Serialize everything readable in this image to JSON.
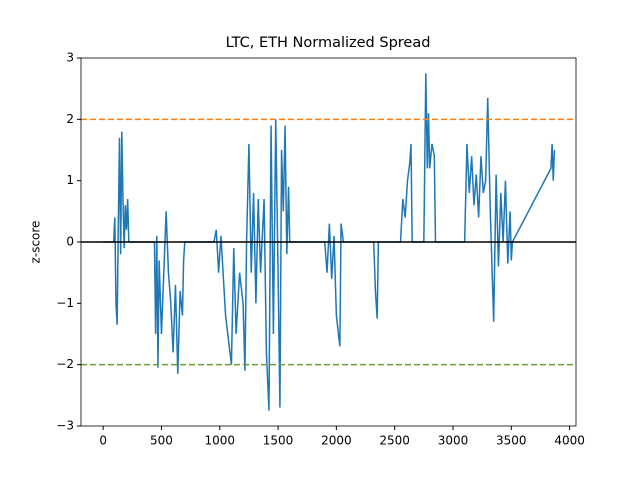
{
  "chart_data": {
    "type": "line",
    "title": "LTC, ETH Normalized Spread",
    "ylabel": "z-score",
    "x": [
      0,
      90,
      100,
      110,
      120,
      130,
      140,
      150,
      160,
      170,
      180,
      190,
      200,
      210,
      220,
      230,
      440,
      450,
      460,
      470,
      480,
      500,
      540,
      560,
      580,
      600,
      620,
      640,
      660,
      680,
      690,
      700,
      950,
      970,
      990,
      1010,
      1050,
      1100,
      1120,
      1140,
      1170,
      1200,
      1216,
      1230,
      1250,
      1270,
      1290,
      1310,
      1330,
      1350,
      1380,
      1400,
      1422,
      1440,
      1460,
      1480,
      1500,
      1516,
      1530,
      1545,
      1560,
      1575,
      1590,
      1600,
      1900,
      1920,
      1940,
      1960,
      1980,
      2000,
      2030,
      2040,
      2060,
      2320,
      2335,
      2350,
      2360,
      2550,
      2570,
      2590,
      2610,
      2630,
      2640,
      2650,
      2750,
      2767,
      2780,
      2790,
      2800,
      2820,
      2840,
      2850,
      3100,
      3120,
      3140,
      3160,
      3180,
      3200,
      3220,
      3240,
      3260,
      3280,
      3298,
      3320,
      3349,
      3370,
      3390,
      3410,
      3430,
      3450,
      3470,
      3490,
      3500,
      3510,
      3840,
      3850,
      3860,
      3870
    ],
    "series": [
      {
        "color": "#1f77b4",
        "values": [
          0,
          0,
          0.4,
          -1.0,
          -1.35,
          0.3,
          1.7,
          -0.2,
          1.8,
          0.7,
          -0.1,
          0.6,
          0.2,
          0.7,
          0,
          0,
          0,
          -1.5,
          0.1,
          -2.05,
          -0.3,
          -1.5,
          0.5,
          -0.5,
          -1.0,
          -1.8,
          -0.7,
          -2.15,
          -0.8,
          -1.2,
          -0.3,
          0,
          0,
          0.2,
          -0.5,
          0.1,
          -1.2,
          -2.0,
          -0.1,
          -1.5,
          -0.5,
          -1.0,
          -2.1,
          0,
          1.6,
          -0.5,
          0.8,
          -1.0,
          0.7,
          -0.5,
          0.7,
          -1.8,
          -2.75,
          1.9,
          -1.5,
          2.0,
          -0.5,
          -2.7,
          1.5,
          0.5,
          1.9,
          -0.2,
          0.9,
          0,
          0,
          -0.5,
          0.3,
          -0.6,
          0.1,
          -1.2,
          -1.7,
          0.3,
          0,
          0,
          -0.8,
          -1.25,
          0,
          0,
          0.7,
          0.4,
          1.0,
          1.3,
          1.6,
          0,
          0,
          2.75,
          1.2,
          2.1,
          1.2,
          1.6,
          1.4,
          0,
          0,
          1.6,
          0.8,
          1.4,
          0.6,
          1.1,
          0.4,
          1.4,
          0.8,
          1.0,
          2.35,
          0.5,
          -1.3,
          1.1,
          -0.4,
          0.8,
          0.0,
          1.0,
          -0.35,
          0.5,
          -0.3,
          0,
          1.2,
          1.6,
          1.0,
          1.5
        ]
      }
    ],
    "hlines": [
      {
        "value": 2,
        "color": "#ff7f0e",
        "style": "dashed"
      },
      {
        "value": -2,
        "color": "#6a9e3a",
        "style": "dashed"
      },
      {
        "value": 0,
        "color": "#000000",
        "style": "solid"
      }
    ],
    "xlim": [
      -190,
      4055
    ],
    "ylim": [
      -3,
      3
    ],
    "xticks": [
      0,
      500,
      1000,
      1500,
      2000,
      2500,
      3000,
      3500,
      4000
    ],
    "yticks": [
      {
        "value": -3,
        "label": "−3"
      },
      {
        "value": -2,
        "label": "−2"
      },
      {
        "value": -1,
        "label": "−1"
      },
      0,
      1,
      2,
      3
    ]
  }
}
